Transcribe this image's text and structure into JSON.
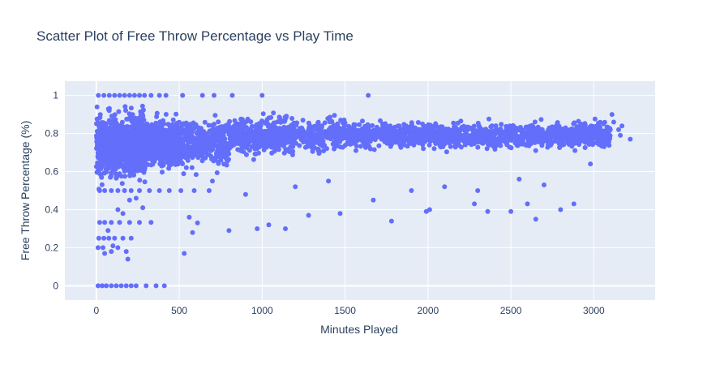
{
  "chart_data": {
    "type": "scatter",
    "title": "Scatter Plot of Free Throw Percentage vs Play Time",
    "xlabel": "Minutes Played",
    "ylabel": "Free Throw Percentage (%)",
    "xlim": [
      -190,
      3370
    ],
    "ylim": [
      -0.075,
      1.075
    ],
    "x_ticks": [
      0,
      500,
      1000,
      1500,
      2000,
      2500,
      3000
    ],
    "y_ticks": [
      0,
      0.2,
      0.4,
      0.6,
      0.8,
      1
    ],
    "grid": true,
    "legend": "none",
    "marker_color": "#636efa",
    "plot_bgcolor": "#e5ecf6",
    "series": [
      {
        "values": [
          [
            12,
            1
          ],
          [
            45,
            1
          ],
          [
            78,
            1
          ],
          [
            110,
            1
          ],
          [
            140,
            1
          ],
          [
            170,
            1
          ],
          [
            200,
            1
          ],
          [
            230,
            1
          ],
          [
            260,
            1
          ],
          [
            290,
            1
          ],
          [
            330,
            1
          ],
          [
            380,
            1
          ],
          [
            420,
            1
          ],
          [
            520,
            1
          ],
          [
            640,
            1
          ],
          [
            710,
            1
          ],
          [
            820,
            1
          ],
          [
            1000,
            1
          ],
          [
            1640,
            1
          ],
          [
            10,
            0
          ],
          [
            35,
            0
          ],
          [
            60,
            0
          ],
          [
            90,
            0
          ],
          [
            120,
            0
          ],
          [
            150,
            0
          ],
          [
            180,
            0
          ],
          [
            210,
            0
          ],
          [
            240,
            0
          ],
          [
            300,
            0
          ],
          [
            360,
            0
          ],
          [
            410,
            0
          ],
          [
            20,
            0.5
          ],
          [
            50,
            0.5
          ],
          [
            90,
            0.5
          ],
          [
            130,
            0.5
          ],
          [
            170,
            0.5
          ],
          [
            210,
            0.5
          ],
          [
            260,
            0.5
          ],
          [
            320,
            0.5
          ],
          [
            380,
            0.5
          ],
          [
            440,
            0.5
          ],
          [
            510,
            0.5
          ],
          [
            590,
            0.5
          ],
          [
            680,
            0.5
          ],
          [
            25,
            0.667
          ],
          [
            60,
            0.667
          ],
          [
            100,
            0.667
          ],
          [
            150,
            0.667
          ],
          [
            210,
            0.667
          ],
          [
            270,
            0.667
          ],
          [
            340,
            0.667
          ],
          [
            420,
            0.667
          ],
          [
            20,
            0.333
          ],
          [
            50,
            0.333
          ],
          [
            90,
            0.333
          ],
          [
            140,
            0.333
          ],
          [
            200,
            0.333
          ],
          [
            260,
            0.333
          ],
          [
            330,
            0.333
          ],
          [
            15,
            0.25
          ],
          [
            45,
            0.25
          ],
          [
            75,
            0.25
          ],
          [
            110,
            0.25
          ],
          [
            160,
            0.25
          ],
          [
            210,
            0.25
          ],
          [
            20,
            0.75
          ],
          [
            60,
            0.75
          ],
          [
            110,
            0.75
          ],
          [
            170,
            0.75
          ],
          [
            230,
            0.75
          ],
          [
            300,
            0.75
          ],
          [
            10,
            0.2
          ],
          [
            40,
            0.2
          ],
          [
            130,
            0.2
          ],
          [
            180,
            0.18
          ],
          [
            190,
            0.14
          ],
          [
            90,
            0.18
          ],
          [
            100,
            0.21
          ],
          [
            50,
            0.17
          ],
          [
            70,
            0.29
          ],
          [
            130,
            0.4
          ],
          [
            160,
            0.38
          ],
          [
            200,
            0.45
          ],
          [
            240,
            0.46
          ],
          [
            280,
            0.41
          ],
          [
            530,
            0.17
          ],
          [
            580,
            0.28
          ],
          [
            610,
            0.33
          ],
          [
            560,
            0.36
          ],
          [
            800,
            0.29
          ],
          [
            970,
            0.3
          ],
          [
            1040,
            0.32
          ],
          [
            1140,
            0.3
          ],
          [
            1280,
            0.37
          ],
          [
            1470,
            0.38
          ],
          [
            1670,
            0.45
          ],
          [
            1780,
            0.34
          ],
          [
            1990,
            0.39
          ],
          [
            2010,
            0.4
          ],
          [
            2280,
            0.43
          ],
          [
            2360,
            0.39
          ],
          [
            2500,
            0.39
          ],
          [
            2600,
            0.43
          ],
          [
            2650,
            0.35
          ],
          [
            2800,
            0.4
          ],
          [
            2880,
            0.43
          ],
          [
            2980,
            0.64
          ],
          [
            3110,
            0.9
          ],
          [
            3120,
            0.86
          ],
          [
            3150,
            0.82
          ],
          [
            3160,
            0.79
          ],
          [
            3170,
            0.84
          ],
          [
            3220,
            0.77
          ],
          [
            3030,
            0.75
          ],
          [
            700,
            0.55
          ],
          [
            900,
            0.48
          ],
          [
            1200,
            0.52
          ],
          [
            1400,
            0.55
          ],
          [
            1900,
            0.5
          ],
          [
            2100,
            0.52
          ],
          [
            2300,
            0.5
          ],
          [
            2550,
            0.56
          ],
          [
            2700,
            0.53
          ]
        ]
      }
    ]
  }
}
